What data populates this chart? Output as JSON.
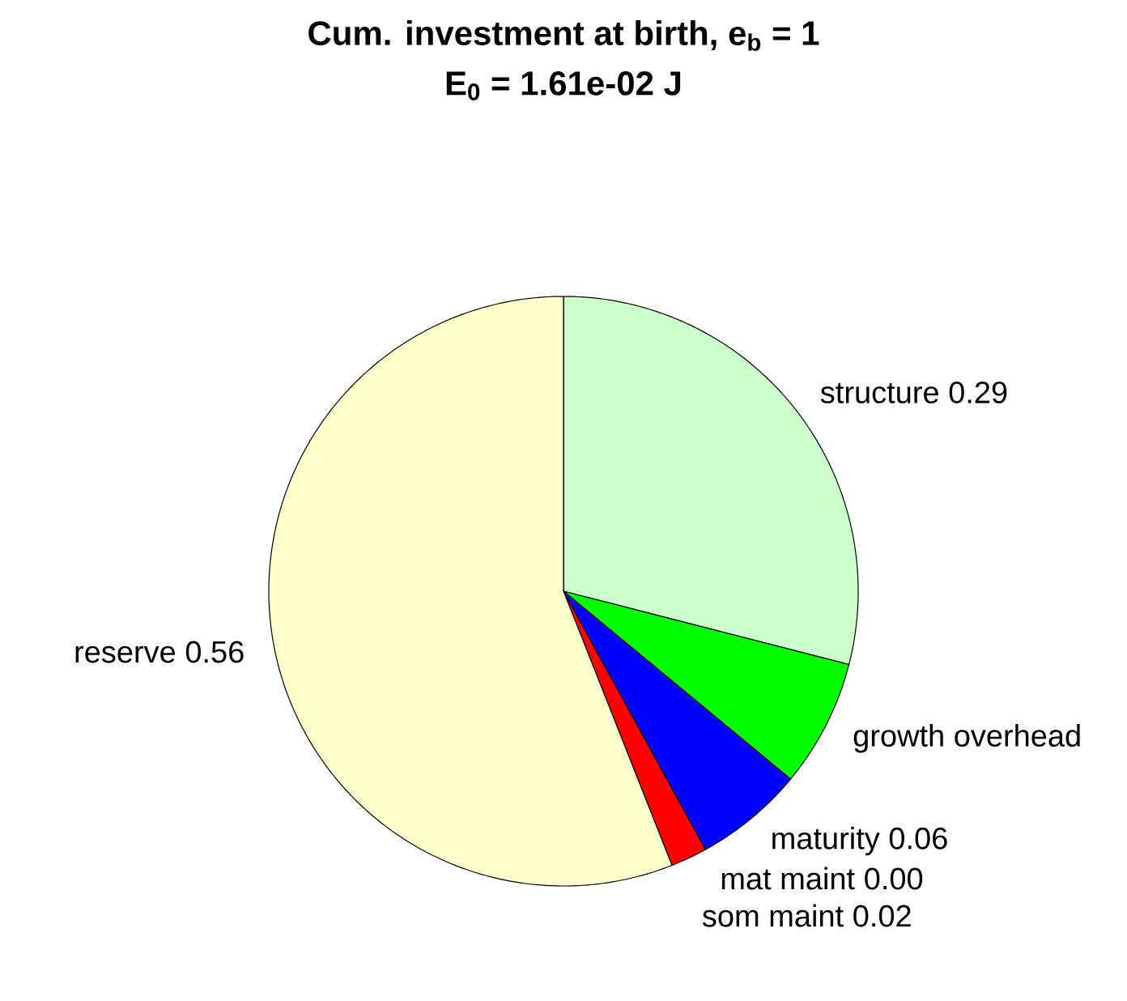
{
  "chart_data": {
    "type": "pie",
    "title": "Cum. investment at birth, e$_{b}$ = 1",
    "subtitle": "E$_{0}$ = 1.61e-02 J",
    "categories": [
      "structure",
      "growth overhead",
      "maturity",
      "mat maint",
      "som maint",
      "reserve"
    ],
    "values": [
      0.29,
      0.07,
      0.06,
      0.0,
      0.02,
      0.56
    ],
    "colors": [
      "#ccffcc",
      "#00ff00",
      "#0000ff",
      "#000000",
      "#ff0000",
      "#ffffcc"
    ],
    "value_labels": [
      "0.29",
      null,
      "0.06",
      "0.00",
      "0.02",
      "0.56"
    ]
  }
}
